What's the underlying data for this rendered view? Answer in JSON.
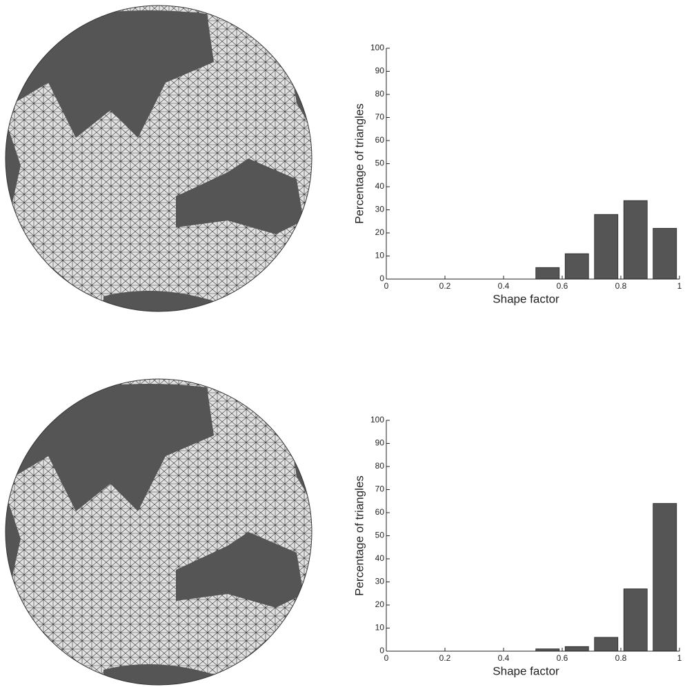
{
  "chart_data": [
    {
      "type": "histogram",
      "xlabel": "Shape factor",
      "ylabel": "Percentage of triangles",
      "bins": [
        0,
        0.1,
        0.2,
        0.3,
        0.4,
        0.5,
        0.6,
        0.7,
        0.8,
        0.9,
        1
      ],
      "values": [
        0,
        0,
        0,
        0,
        0,
        5,
        11,
        28,
        34,
        22
      ],
      "color": "#555555",
      "xlim": [
        0,
        1
      ],
      "ylim": [
        0,
        100
      ],
      "xticks": [
        0,
        0.2,
        0.4,
        0.6,
        0.8,
        1
      ],
      "yticks": [
        0,
        10,
        20,
        30,
        40,
        50,
        60,
        70,
        80,
        90,
        100
      ]
    },
    {
      "type": "histogram",
      "xlabel": "Shape factor",
      "ylabel": "Percentage of triangles",
      "bins": [
        0,
        0.1,
        0.2,
        0.3,
        0.4,
        0.5,
        0.6,
        0.7,
        0.8,
        0.9,
        1
      ],
      "values": [
        0,
        0,
        0,
        0,
        0,
        1,
        2,
        6,
        27,
        64
      ],
      "color": "#555555",
      "xlim": [
        0,
        1
      ],
      "ylim": [
        0,
        100
      ],
      "xticks": [
        0,
        0.2,
        0.4,
        0.6,
        0.8,
        1
      ],
      "yticks": [
        0,
        10,
        20,
        30,
        40,
        50,
        60,
        70,
        80,
        90,
        100
      ]
    }
  ]
}
